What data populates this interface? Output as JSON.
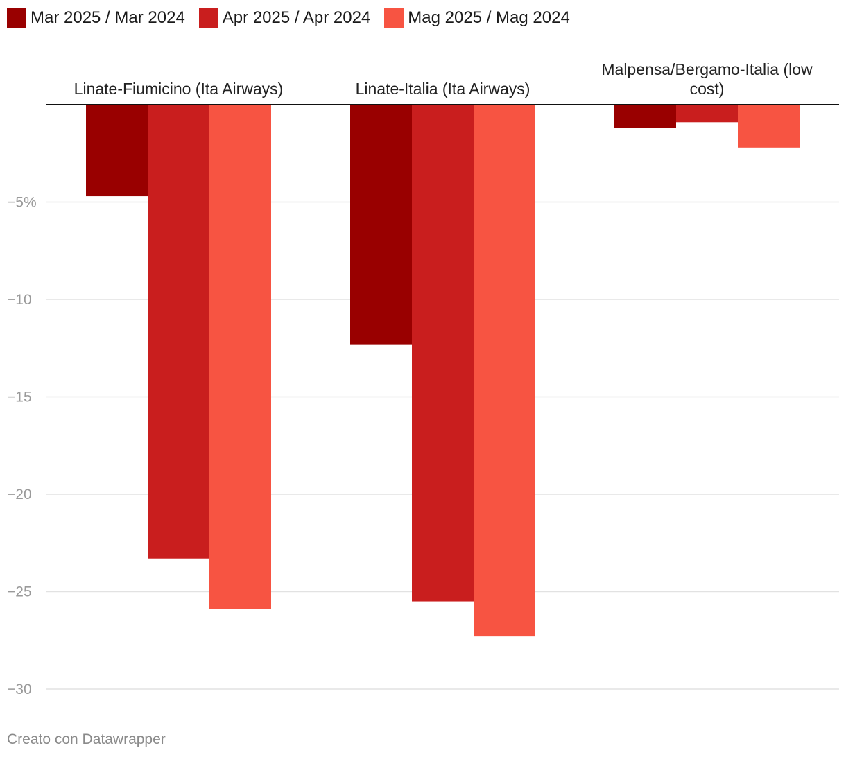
{
  "chart_data": {
    "type": "bar",
    "categories": [
      "Linate-Fiumicino (Ita Airways)",
      "Linate-Italia (Ita Airways)",
      "Malpensa/Bergamo-Italia (low cost)"
    ],
    "series": [
      {
        "name": "Mar 2025 / Mar 2024",
        "color": "#990000",
        "values": [
          -4.7,
          -12.3,
          -1.2
        ]
      },
      {
        "name": "Apr 2025 / Apr 2024",
        "color": "#c91e1e",
        "values": [
          -23.3,
          -25.5,
          -0.9
        ]
      },
      {
        "name": "Mag 2025 / Mag 2024",
        "color": "#f75442",
        "values": [
          -25.9,
          -27.3,
          -2.2
        ]
      }
    ],
    "yticks": [
      {
        "value": -5,
        "label": "−5%"
      },
      {
        "value": -10,
        "label": "−10"
      },
      {
        "value": -15,
        "label": "−15"
      },
      {
        "value": -20,
        "label": "−20"
      },
      {
        "value": -25,
        "label": "−25"
      },
      {
        "value": -30,
        "label": "−30"
      }
    ],
    "ylim": [
      -30,
      0
    ],
    "grid": true,
    "legend_position": "top-left"
  },
  "footer": {
    "credit": "Creato con Datawrapper"
  }
}
